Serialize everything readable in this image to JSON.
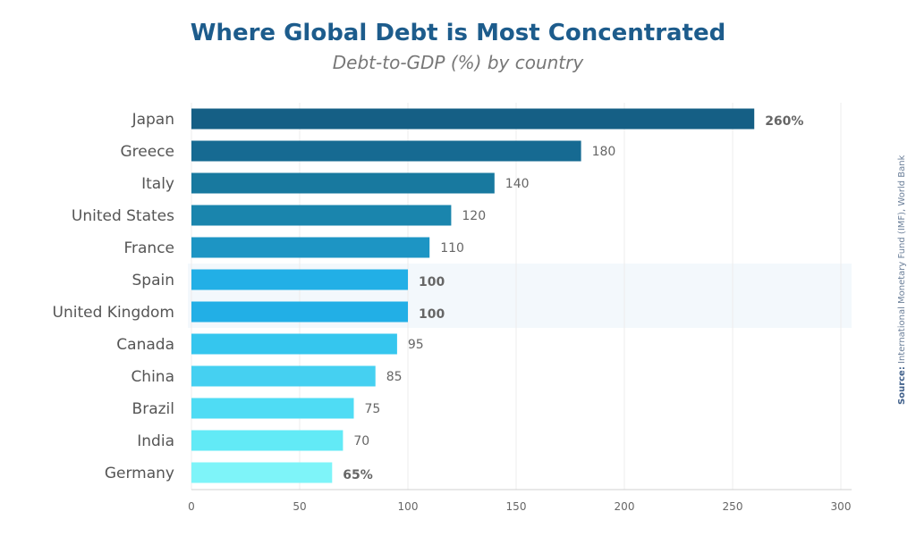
{
  "chart_data": {
    "type": "bar",
    "orientation": "horizontal",
    "title": "Where Global Debt is Most Concentrated",
    "subtitle": "Debt-to-GDP (%) by country",
    "categories": [
      "Japan",
      "Greece",
      "Italy",
      "United States",
      "France",
      "Spain",
      "United Kingdom",
      "Canada",
      "China",
      "Brazil",
      "India",
      "Germany"
    ],
    "values": [
      260,
      180,
      140,
      120,
      110,
      100,
      100,
      95,
      85,
      75,
      70,
      65
    ],
    "value_labels": [
      "260%",
      "180",
      "140",
      "120",
      "110",
      "100",
      "100",
      "95",
      "85",
      "75",
      "70",
      "65%"
    ],
    "bar_colors": [
      "#155f85",
      "#166a92",
      "#18799f",
      "#1a85ad",
      "#1d95c4",
      "#22afe6",
      "#22afe6",
      "#35c6ee",
      "#45d0f1",
      "#4fdcf4",
      "#62eaf6",
      "#7ef4f9"
    ],
    "emphasized_labels": {
      "Japan": "#1d5c8c",
      "Spain": "#2bb5e5",
      "United Kingdom": "#2bb5e5",
      "Germany": "#2bc8e8"
    },
    "highlighted_categories": [
      "Spain",
      "United Kingdom"
    ],
    "highlight_color": "#f3f8fc",
    "xlim": [
      0,
      300
    ],
    "xticks": [
      0,
      50,
      100,
      150,
      200,
      250,
      300
    ],
    "xgrid": true,
    "xlabel": "",
    "ylabel": ""
  },
  "source": {
    "prefix": "Source:",
    "text": " International Monetary Fund (IMF), World Bank"
  }
}
